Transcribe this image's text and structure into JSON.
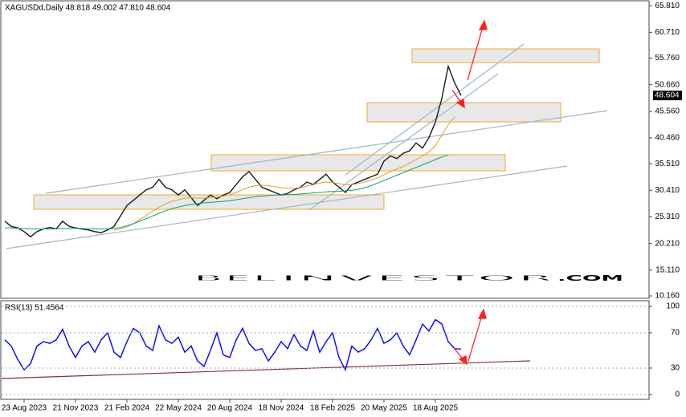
{
  "chart_data": [
    {
      "type": "line",
      "title": "XAGUSDd,Daily  48.818 49.002 47.810 48.604",
      "categories": [
        null,
        null,
        null,
        "23 Aug 2023",
        null,
        null,
        null,
        null,
        null,
        null,
        null,
        "21 Nov 2023",
        null,
        null,
        null,
        null,
        null,
        null,
        null,
        "21 Feb 2024",
        null,
        null,
        null,
        null,
        null,
        null,
        null,
        "22 May 2024",
        null,
        null,
        null,
        null,
        null,
        null,
        null,
        "20 Aug 2024",
        null,
        null,
        null,
        null,
        null,
        null,
        null,
        "18 Nov 2024",
        null,
        null,
        null,
        null,
        null,
        null,
        null,
        "18 Feb 2025",
        null,
        null,
        null,
        null,
        null,
        null,
        null,
        "20 May 2025",
        null,
        null,
        null,
        null,
        null,
        null,
        null,
        "18 Aug 2025",
        null,
        null,
        null,
        null
      ],
      "series": [
        {
          "color": "#1a1a1a",
          "values": [
            24.5,
            23.5,
            23.2,
            22.5,
            21.5,
            22.5,
            23.0,
            23.3,
            23.0,
            24.5,
            23.5,
            23.2,
            23.0,
            22.8,
            22.5,
            22.3,
            22.8,
            23.5,
            25.5,
            27.5,
            28.5,
            29.5,
            30.5,
            31.0,
            32.5,
            31.0,
            30.5,
            29.5,
            30.5,
            29.0,
            27.5,
            28.5,
            29.5,
            28.8,
            29.5,
            30.0,
            31.5,
            33.0,
            34.0,
            32.5,
            31.0,
            30.5,
            30.0,
            29.5,
            29.8,
            30.5,
            31.0,
            32.0,
            31.5,
            32.5,
            33.5,
            32.0,
            31.0,
            30.0,
            31.5,
            32.0,
            32.5,
            33.0,
            33.5,
            36.0,
            37.0,
            36.5,
            37.5,
            38.0,
            39.5,
            38.5,
            40.5,
            43.5,
            48.0,
            54.2,
            51.0,
            48.6
          ]
        },
        {
          "color": "#e0a020",
          "values": [
            null,
            null,
            null,
            null,
            null,
            null,
            null,
            null,
            null,
            null,
            null,
            null,
            null,
            null,
            null,
            null,
            null,
            22.8,
            23.0,
            23.4,
            24.0,
            24.8,
            25.6,
            26.4,
            27.2,
            27.8,
            28.3,
            28.6,
            28.9,
            29.0,
            28.9,
            28.9,
            29.0,
            29.1,
            29.3,
            29.6,
            30.0,
            30.5,
            31.0,
            31.3,
            31.4,
            31.3,
            31.1,
            30.9,
            30.8,
            30.8,
            30.9,
            31.2,
            31.5,
            31.8,
            32.0,
            31.9,
            31.7,
            31.5,
            31.5,
            31.7,
            32.0,
            32.4,
            32.8,
            33.4,
            34.0,
            34.5,
            35.0,
            35.6,
            36.3,
            37.0,
            37.8,
            39.0,
            41.0,
            43.0,
            44.5,
            null
          ]
        },
        {
          "color": "#10a070",
          "values": [
            23.2,
            23.2,
            23.1,
            23.1,
            23.0,
            23.0,
            23.0,
            23.0,
            23.0,
            23.1,
            23.1,
            23.1,
            23.1,
            23.0,
            23.0,
            23.0,
            23.0,
            23.1,
            23.3,
            23.6,
            24.0,
            24.5,
            25.0,
            25.5,
            26.0,
            26.5,
            26.9,
            27.2,
            27.5,
            27.7,
            27.9,
            28.0,
            28.1,
            28.2,
            28.3,
            28.4,
            28.6,
            28.8,
            29.0,
            29.2,
            29.3,
            29.4,
            29.5,
            29.5,
            29.6,
            29.6,
            29.7,
            29.8,
            29.9,
            30.0,
            30.1,
            30.2,
            30.2,
            30.3,
            30.4,
            30.6,
            30.9,
            31.3,
            31.8,
            32.3,
            32.8,
            33.3,
            33.8,
            34.3,
            34.8,
            35.3,
            35.8,
            36.3,
            36.8,
            37.2,
            null,
            null
          ]
        }
      ],
      "last_price": 48.604,
      "ylim": [
        9.7,
        66.6
      ],
      "yticks": [
        {
          "value": 65.81,
          "label": "65.810"
        },
        {
          "value": 60.71,
          "label": "60.710"
        },
        {
          "value": 55.76,
          "label": "55.760"
        },
        {
          "value": 50.66,
          "label": "50.660"
        },
        {
          "value": 45.56,
          "label": "45.560"
        },
        {
          "value": 40.46,
          "label": "40.460"
        },
        {
          "value": 35.51,
          "label": "35.510"
        },
        {
          "value": 30.41,
          "label": "30.410"
        },
        {
          "value": 25.31,
          "label": "25.310"
        },
        {
          "value": 20.21,
          "label": "20.210"
        },
        {
          "value": 15.11,
          "label": "15.110"
        },
        {
          "value": 10.16,
          "label": "10.160"
        }
      ],
      "watermark": [
        "BEL",
        "INVESTOR",
        ".COM"
      ]
    },
    {
      "type": "line",
      "title": "RSI(13) 51.4564",
      "series": [
        {
          "color": "#0000ff",
          "values": [
            62,
            55,
            40,
            28,
            35,
            55,
            60,
            58,
            62,
            74,
            55,
            42,
            55,
            60,
            48,
            62,
            70,
            48,
            42,
            60,
            75,
            70,
            55,
            50,
            78,
            62,
            58,
            65,
            48,
            55,
            38,
            32,
            50,
            70,
            45,
            42,
            62,
            75,
            58,
            50,
            52,
            38,
            48,
            60,
            52,
            68,
            55,
            50,
            72,
            48,
            60,
            70,
            42,
            28,
            55,
            48,
            52,
            62,
            75,
            58,
            62,
            70,
            55,
            45,
            62,
            80,
            72,
            85,
            80,
            60,
            52,
            51.5
          ]
        }
      ],
      "ylim": [
        -5.5,
        106.4
      ],
      "yticks": [
        0,
        30,
        70,
        100
      ],
      "grid": true
    }
  ]
}
